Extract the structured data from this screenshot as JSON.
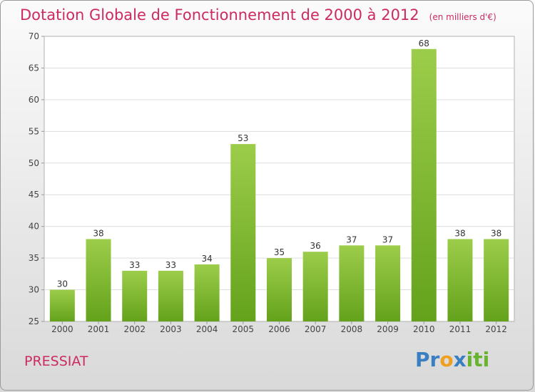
{
  "title": "Dotation Globale de Fonctionnement de 2000 à 2012",
  "subtitle": "(en milliers d'€)",
  "commune": "PRESSIAT",
  "logo": {
    "letters": [
      "P",
      "r",
      "o",
      "x",
      "i",
      "t",
      "i"
    ],
    "colors": [
      "#3a7fc1",
      "#3a7fc1",
      "#f0a020",
      "#3a7fc1",
      "#69b42f",
      "#69b42f",
      "#69b42f"
    ]
  },
  "colors": {
    "title": "#cc2a63",
    "bar_light": "#9ccd4a",
    "bar_dark": "#64a21c"
  },
  "chart_data": {
    "type": "bar",
    "categories": [
      "2000",
      "2001",
      "2002",
      "2003",
      "2004",
      "2005",
      "2006",
      "2007",
      "2008",
      "2009",
      "2010",
      "2011",
      "2012"
    ],
    "values": [
      30,
      38,
      33,
      33,
      34,
      53,
      35,
      36,
      37,
      37,
      68,
      38,
      38
    ],
    "title": "Dotation Globale de Fonctionnement de 2000 à 2012",
    "subtitle": "(en milliers d'€)",
    "xlabel": "",
    "ylabel": "",
    "ylim": [
      25,
      70
    ],
    "yticks": [
      25,
      30,
      35,
      40,
      45,
      50,
      55,
      60,
      65,
      70
    ],
    "grid": true
  }
}
